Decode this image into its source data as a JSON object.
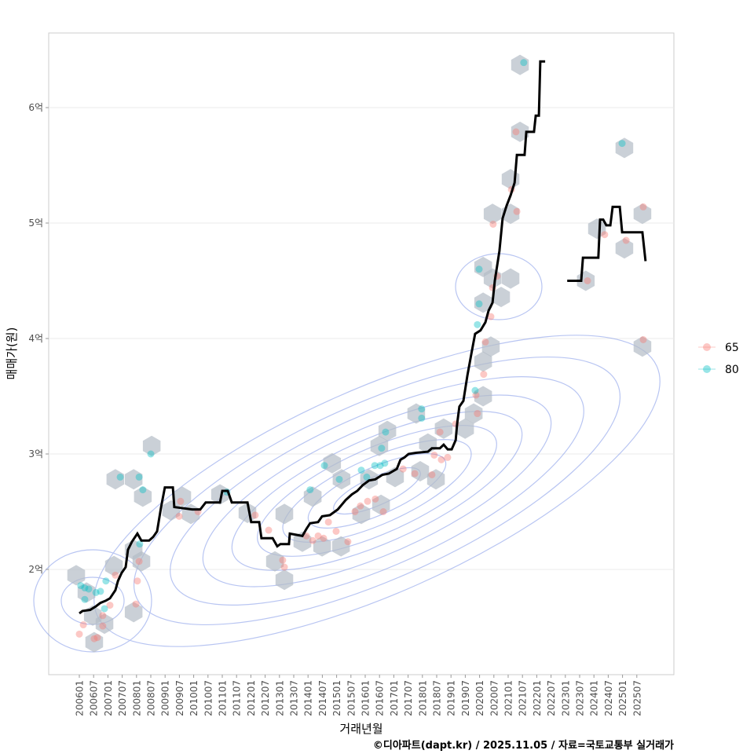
{
  "chart_data": {
    "type": "scatter",
    "xlabel": "거래년월",
    "ylabel": "매매가(원)",
    "caption": "©디아파트(dapt.kr) / 2025.11.05 / 자료=국토교통부 실거래가",
    "xlim": [
      2004.6,
      2026.6
    ],
    "ylim": [
      1.35,
      6.95
    ],
    "y_unit": "억",
    "y_ticks": [
      {
        "v": 2,
        "label": "2억"
      },
      {
        "v": 3,
        "label": "3억"
      },
      {
        "v": 4,
        "label": "4억"
      },
      {
        "v": 5,
        "label": "5억"
      },
      {
        "v": 6,
        "label": "6억"
      }
    ],
    "x_ticks": [
      "200601",
      "200607",
      "200701",
      "200707",
      "200801",
      "200807",
      "200901",
      "200907",
      "201001",
      "201007",
      "201101",
      "201107",
      "201201",
      "201207",
      "201301",
      "201307",
      "201401",
      "201407",
      "201501",
      "201507",
      "201601",
      "201607",
      "201701",
      "201707",
      "201801",
      "201807",
      "201901",
      "201907",
      "202001",
      "202007",
      "202101",
      "202107",
      "202201",
      "202207",
      "202301",
      "202307",
      "202401",
      "202407",
      "202501",
      "202507"
    ],
    "grid": true,
    "legend": {
      "position": "right",
      "entries": [
        {
          "label": "65",
          "color": "#f8766d"
        },
        {
          "label": "80",
          "color": "#00bfc4"
        }
      ]
    },
    "colors": {
      "line": "#000000",
      "hex": "#b4bcc6",
      "contour": "#7f96e8",
      "s65": "#f8766d",
      "s80": "#00bfc4"
    },
    "series": [
      {
        "name": "65",
        "points": [
          [
            2006.0,
            1.44
          ],
          [
            2006.14,
            1.52
          ],
          [
            2006.52,
            1.4
          ],
          [
            2006.63,
            1.41
          ],
          [
            2006.82,
            1.6
          ],
          [
            2006.82,
            1.51
          ],
          [
            2007.07,
            1.69
          ],
          [
            2007.26,
            1.95
          ],
          [
            2007.98,
            1.7
          ],
          [
            2008.09,
            2.07
          ],
          [
            2008.03,
            1.9
          ],
          [
            2009.54,
            2.59
          ],
          [
            2009.49,
            2.46
          ],
          [
            2010.15,
            2.5
          ],
          [
            2012.15,
            2.47
          ],
          [
            2012.62,
            2.34
          ],
          [
            2013.11,
            2.08
          ],
          [
            2013.17,
            2.02
          ],
          [
            2013.94,
            2.29
          ],
          [
            2014.16,
            2.25
          ],
          [
            2014.35,
            2.29
          ],
          [
            2014.54,
            2.27
          ],
          [
            2014.71,
            2.41
          ],
          [
            2014.98,
            2.33
          ],
          [
            2015.39,
            2.24
          ],
          [
            2015.64,
            2.5
          ],
          [
            2015.83,
            2.55
          ],
          [
            2016.08,
            2.59
          ],
          [
            2016.35,
            2.61
          ],
          [
            2016.63,
            2.5
          ],
          [
            2017.32,
            2.87
          ],
          [
            2017.73,
            2.83
          ],
          [
            2018.33,
            2.82
          ],
          [
            2018.41,
            2.99
          ],
          [
            2018.66,
            2.95
          ],
          [
            2018.88,
            2.97
          ],
          [
            2018.61,
            3.19
          ],
          [
            2019.16,
            3.26
          ],
          [
            2019.87,
            3.51
          ],
          [
            2019.92,
            3.35
          ],
          [
            2020.14,
            3.69
          ],
          [
            2020.2,
            3.97
          ],
          [
            2020.39,
            4.19
          ],
          [
            2020.45,
            4.44
          ],
          [
            2020.61,
            4.54
          ],
          [
            2020.47,
            4.99
          ],
          [
            2021.3,
            5.1
          ],
          [
            2021.27,
            5.79
          ],
          [
            2021.11,
            5.29
          ],
          [
            2024.37,
            4.9
          ],
          [
            2025.12,
            4.85
          ],
          [
            2023.77,
            4.5
          ],
          [
            2025.72,
            5.14
          ],
          [
            2025.72,
            3.99
          ]
        ]
      },
      {
        "name": "80",
        "points": [
          [
            2006.05,
            1.86
          ],
          [
            2006.19,
            1.84
          ],
          [
            2006.33,
            1.83
          ],
          [
            2006.19,
            1.74
          ],
          [
            2006.58,
            1.8
          ],
          [
            2006.74,
            1.81
          ],
          [
            2006.93,
            1.9
          ],
          [
            2006.88,
            1.66
          ],
          [
            2007.43,
            2.8
          ],
          [
            2008.09,
            2.8
          ],
          [
            2008.22,
            2.69
          ],
          [
            2008.5,
            3.0
          ],
          [
            2008.11,
            2.22
          ],
          [
            2011.16,
            2.67
          ],
          [
            2014.07,
            2.69
          ],
          [
            2014.57,
            2.9
          ],
          [
            2015.09,
            2.78
          ],
          [
            2015.86,
            2.86
          ],
          [
            2016.05,
            2.8
          ],
          [
            2016.33,
            2.9
          ],
          [
            2016.52,
            2.9
          ],
          [
            2016.68,
            2.92
          ],
          [
            2016.71,
            3.19
          ],
          [
            2016.57,
            3.05
          ],
          [
            2017.97,
            3.39
          ],
          [
            2017.97,
            3.31
          ],
          [
            2019.84,
            3.55
          ],
          [
            2019.92,
            4.12
          ],
          [
            2019.98,
            4.6
          ],
          [
            2019.98,
            4.3
          ],
          [
            2021.54,
            6.39
          ],
          [
            2024.98,
            5.69
          ]
        ]
      }
    ],
    "hexbins": [
      [
        2005.89,
        1.95
      ],
      [
        2006.25,
        1.8
      ],
      [
        2006.47,
        1.6
      ],
      [
        2006.88,
        1.53
      ],
      [
        2006.52,
        1.37
      ],
      [
        2007.21,
        2.03
      ],
      [
        2007.9,
        2.17
      ],
      [
        2008.17,
        2.07
      ],
      [
        2007.9,
        1.63
      ],
      [
        2007.26,
        2.78
      ],
      [
        2007.9,
        2.78
      ],
      [
        2008.22,
        2.63
      ],
      [
        2008.53,
        3.07
      ],
      [
        2009.21,
        2.51
      ],
      [
        2009.6,
        2.63
      ],
      [
        2009.9,
        2.48
      ],
      [
        2010.92,
        2.65
      ],
      [
        2011.88,
        2.49
      ],
      [
        2012.84,
        2.07
      ],
      [
        2013.17,
        1.91
      ],
      [
        2013.17,
        2.48
      ],
      [
        2013.8,
        2.24
      ],
      [
        2014.16,
        2.63
      ],
      [
        2014.84,
        2.92
      ],
      [
        2015.17,
        2.78
      ],
      [
        2014.49,
        2.2
      ],
      [
        2015.15,
        2.2
      ],
      [
        2015.86,
        2.48
      ],
      [
        2016.13,
        2.78
      ],
      [
        2016.49,
        3.07
      ],
      [
        2016.77,
        3.2
      ],
      [
        2016.55,
        2.56
      ],
      [
        2017.04,
        2.8
      ],
      [
        2017.92,
        2.85
      ],
      [
        2018.47,
        2.78
      ],
      [
        2017.78,
        3.35
      ],
      [
        2018.19,
        3.09
      ],
      [
        2018.74,
        3.22
      ],
      [
        2019.49,
        3.22
      ],
      [
        2019.79,
        3.35
      ],
      [
        2020.12,
        3.5
      ],
      [
        2020.12,
        3.8
      ],
      [
        2020.39,
        3.93
      ],
      [
        2020.12,
        4.31
      ],
      [
        2020.12,
        4.62
      ],
      [
        2020.45,
        4.52
      ],
      [
        2020.75,
        4.36
      ],
      [
        2021.08,
        4.52
      ],
      [
        2020.45,
        5.08
      ],
      [
        2021.08,
        5.08
      ],
      [
        2021.08,
        5.38
      ],
      [
        2021.41,
        5.79
      ],
      [
        2021.41,
        6.37
      ],
      [
        2024.1,
        4.95
      ],
      [
        2025.06,
        4.78
      ],
      [
        2023.71,
        4.5
      ],
      [
        2025.06,
        5.65
      ],
      [
        2025.69,
        5.08
      ],
      [
        2025.69,
        3.93
      ]
    ],
    "trend_lines": [
      [
        [
          2006.0,
          1.62
        ],
        [
          2006.11,
          1.64
        ],
        [
          2006.38,
          1.65
        ],
        [
          2006.58,
          1.68
        ],
        [
          2006.74,
          1.71
        ],
        [
          2006.93,
          1.73
        ],
        [
          2007.07,
          1.75
        ],
        [
          2007.26,
          1.82
        ],
        [
          2007.35,
          1.9
        ],
        [
          2007.48,
          1.97
        ],
        [
          2007.62,
          2.02
        ],
        [
          2007.7,
          2.17
        ],
        [
          2007.84,
          2.24
        ],
        [
          2008.03,
          2.31
        ],
        [
          2008.17,
          2.25
        ],
        [
          2008.44,
          2.25
        ],
        [
          2008.58,
          2.28
        ],
        [
          2008.72,
          2.33
        ],
        [
          2008.86,
          2.54
        ],
        [
          2008.99,
          2.71
        ],
        [
          2009.27,
          2.71
        ],
        [
          2009.32,
          2.54
        ],
        [
          2009.95,
          2.52
        ],
        [
          2010.23,
          2.52
        ],
        [
          2010.42,
          2.58
        ],
        [
          2010.92,
          2.58
        ],
        [
          2011.0,
          2.68
        ],
        [
          2011.19,
          2.68
        ],
        [
          2011.33,
          2.58
        ],
        [
          2011.88,
          2.58
        ],
        [
          2012.01,
          2.41
        ],
        [
          2012.29,
          2.41
        ],
        [
          2012.37,
          2.27
        ],
        [
          2012.76,
          2.27
        ],
        [
          2012.92,
          2.2
        ],
        [
          2013.03,
          2.22
        ],
        [
          2013.33,
          2.22
        ],
        [
          2013.36,
          2.31
        ],
        [
          2013.8,
          2.29
        ],
        [
          2013.94,
          2.35
        ],
        [
          2014.07,
          2.4
        ],
        [
          2014.35,
          2.41
        ],
        [
          2014.49,
          2.46
        ],
        [
          2014.76,
          2.47
        ],
        [
          2015.04,
          2.52
        ],
        [
          2015.31,
          2.6
        ],
        [
          2015.53,
          2.65
        ],
        [
          2015.72,
          2.68
        ],
        [
          2015.91,
          2.73
        ],
        [
          2016.13,
          2.77
        ],
        [
          2016.35,
          2.78
        ],
        [
          2016.6,
          2.82
        ],
        [
          2016.82,
          2.83
        ],
        [
          2017.1,
          2.87
        ],
        [
          2017.23,
          2.95
        ],
        [
          2017.37,
          2.97
        ],
        [
          2017.51,
          3.0
        ],
        [
          2017.78,
          3.01
        ],
        [
          2018.19,
          3.02
        ],
        [
          2018.33,
          3.05
        ],
        [
          2018.61,
          3.05
        ],
        [
          2018.74,
          3.08
        ],
        [
          2018.88,
          3.04
        ],
        [
          2019.02,
          3.04
        ],
        [
          2019.16,
          3.12
        ],
        [
          2019.21,
          3.26
        ],
        [
          2019.29,
          3.41
        ],
        [
          2019.43,
          3.46
        ],
        [
          2019.57,
          3.68
        ],
        [
          2019.71,
          3.87
        ],
        [
          2019.84,
          4.04
        ],
        [
          2020.03,
          4.07
        ],
        [
          2020.2,
          4.14
        ],
        [
          2020.31,
          4.24
        ],
        [
          2020.45,
          4.31
        ],
        [
          2020.53,
          4.5
        ],
        [
          2020.69,
          4.76
        ],
        [
          2020.8,
          5.04
        ],
        [
          2020.94,
          5.15
        ],
        [
          2021.08,
          5.24
        ],
        [
          2021.22,
          5.35
        ],
        [
          2021.3,
          5.59
        ],
        [
          2021.57,
          5.59
        ],
        [
          2021.63,
          5.79
        ],
        [
          2021.9,
          5.79
        ],
        [
          2021.96,
          5.93
        ],
        [
          2022.07,
          5.93
        ],
        [
          2022.12,
          6.4
        ],
        [
          2022.29,
          6.4
        ]
      ],
      [
        [
          2023.06,
          4.5
        ],
        [
          2023.55,
          4.5
        ],
        [
          2023.61,
          4.7
        ],
        [
          2024.15,
          4.7
        ],
        [
          2024.21,
          5.03
        ],
        [
          2024.32,
          5.03
        ],
        [
          2024.43,
          4.98
        ],
        [
          2024.57,
          4.98
        ],
        [
          2024.65,
          5.14
        ],
        [
          2024.9,
          5.14
        ],
        [
          2024.98,
          4.92
        ],
        [
          2025.69,
          4.92
        ],
        [
          2025.8,
          4.67
        ]
      ]
    ]
  }
}
